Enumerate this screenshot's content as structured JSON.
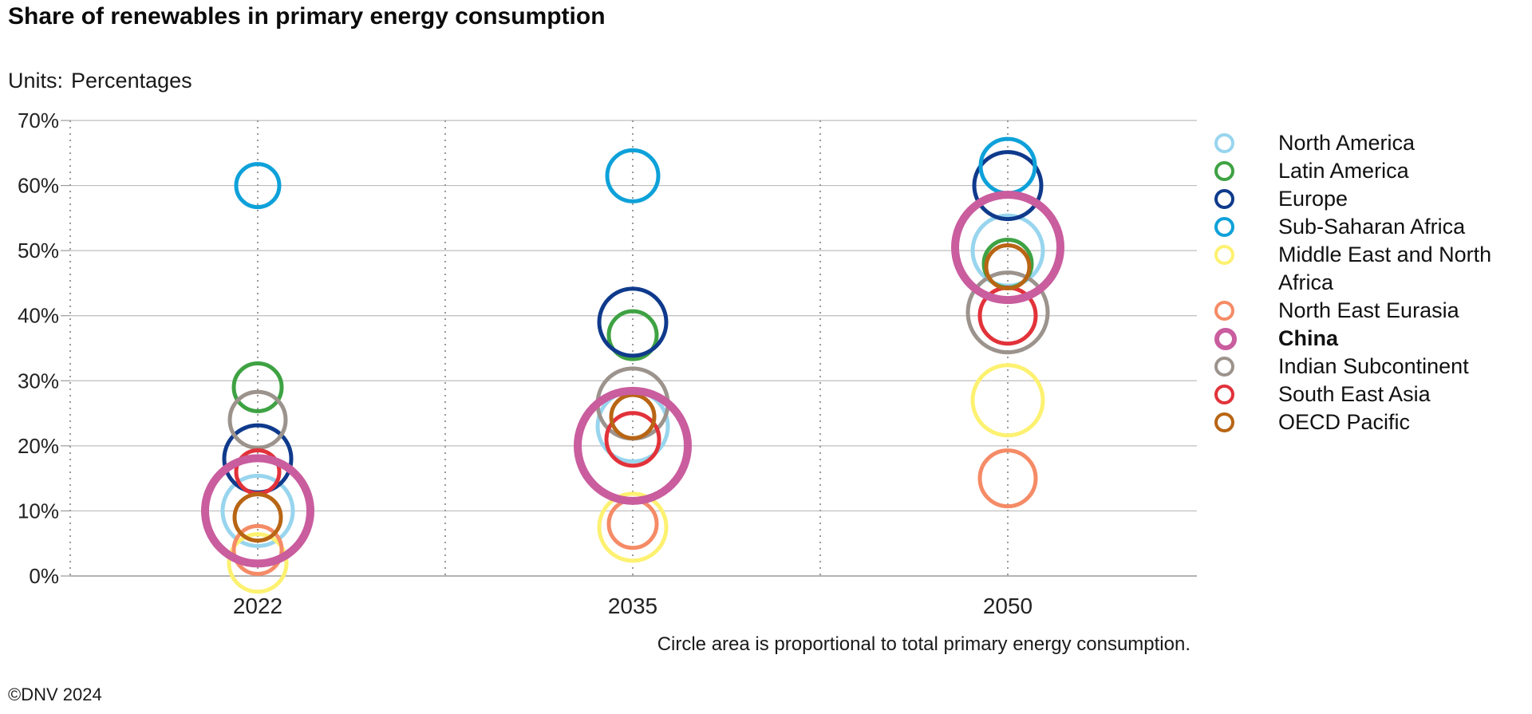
{
  "header": {
    "title": "Share of renewables in primary energy consumption",
    "units_label": "Units:",
    "units_value": "Percentages"
  },
  "footer": {
    "note": "Circle area is proportional to total primary energy consumption.",
    "copyright": "©DNV 2024"
  },
  "chart_data": {
    "type": "scatter",
    "subtype": "bubble",
    "title": "Share of renewables in primary energy consumption",
    "units": "Percentages",
    "categories": [
      "2022",
      "2035",
      "2050"
    ],
    "y_ticks": [
      "0%",
      "10%",
      "20%",
      "30%",
      "40%",
      "50%",
      "60%",
      "70%"
    ],
    "ylim": [
      0,
      70
    ],
    "grid": true,
    "legend_position": "right",
    "size_note": "Circle area is proportional to total primary energy consumption.",
    "series": [
      {
        "name": "North America",
        "color": "#98d5ee",
        "y": [
          10,
          23,
          50
        ],
        "radius_scale": [
          44,
          44,
          44
        ]
      },
      {
        "name": "Latin America",
        "color": "#3ea243",
        "y": [
          29,
          37,
          48
        ],
        "radius_scale": [
          30,
          30,
          30
        ]
      },
      {
        "name": "Europe",
        "color": "#0f3a8c",
        "y": [
          18,
          39,
          60
        ],
        "radius_scale": [
          42,
          42,
          42
        ]
      },
      {
        "name": "Sub-Saharan Africa",
        "color": "#0ea1d9",
        "y": [
          60,
          61.5,
          63
        ],
        "radius_scale": [
          27,
          32,
          34
        ]
      },
      {
        "name": "Middle East and North Africa",
        "color": "#fdf171",
        "y": [
          2,
          7.5,
          27
        ],
        "radius_scale": [
          36,
          42,
          44
        ]
      },
      {
        "name": "North East Eurasia",
        "color": "#f58b66",
        "y": [
          4,
          8,
          15
        ],
        "radius_scale": [
          30,
          30,
          35
        ]
      },
      {
        "name": "China",
        "color": "#c95d9e",
        "y": [
          10,
          20,
          50.5
        ],
        "radius_scale": [
          66,
          69,
          66
        ],
        "highlight": true
      },
      {
        "name": "Indian Subcontinent",
        "color": "#9c938d",
        "y": [
          24,
          26.5,
          40.5
        ],
        "radius_scale": [
          35,
          44,
          50
        ]
      },
      {
        "name": "South East Asia",
        "color": "#e2323a",
        "y": [
          16,
          21,
          40
        ],
        "radius_scale": [
          27,
          33,
          35
        ]
      },
      {
        "name": "OECD Pacific",
        "color": "#b86514",
        "y": [
          9,
          24.5,
          47.5
        ],
        "radius_scale": [
          29,
          27,
          27
        ]
      }
    ]
  }
}
